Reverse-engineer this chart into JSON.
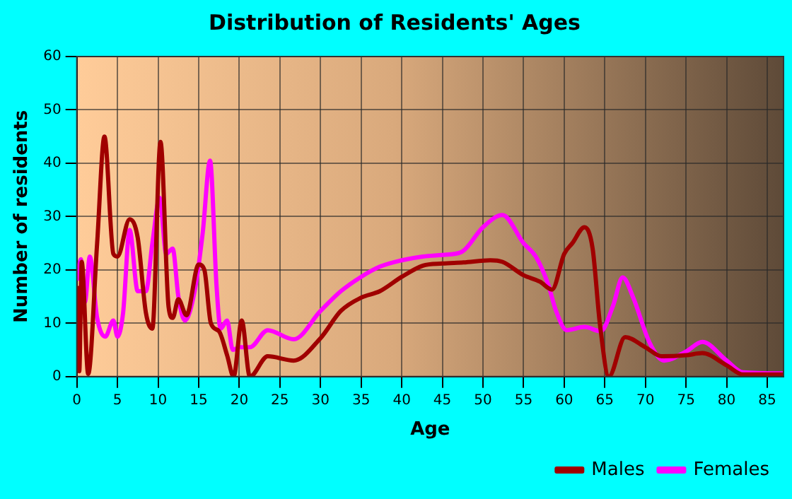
{
  "chart_data": {
    "type": "line",
    "title": "Distribution of Residents' Ages",
    "xlabel": "Age",
    "ylabel": "Number of residents",
    "xlim": [
      0,
      87
    ],
    "xticks": [
      0,
      5,
      10,
      15,
      20,
      25,
      30,
      35,
      40,
      45,
      50,
      55,
      60,
      65,
      70,
      75,
      80,
      85
    ],
    "ylim": [
      0,
      60
    ],
    "yticks": [
      0,
      10,
      20,
      30,
      40,
      50,
      60
    ],
    "grid": true,
    "legend": "bottom right",
    "marker": "none",
    "line_style": "solid",
    "series": [
      {
        "name": "Males",
        "color": "#a00000",
        "x": [
          0,
          0.3,
          0.6,
          1.4,
          2.5,
          3.4,
          4.5,
          5,
          6.5,
          7.5,
          8.5,
          9.3,
          10.3,
          11.3,
          11.8,
          12.5,
          13.5,
          15,
          15.7,
          16.5,
          17.5,
          18.5,
          19.3,
          20.3,
          21.3,
          23.5,
          26.7,
          30,
          32.5,
          35,
          37.3,
          40,
          42.6,
          45,
          47.6,
          50.9,
          52.4,
          55,
          57,
          58.5,
          60,
          61,
          62.5,
          63.5,
          64.4,
          65.5,
          67.5,
          70,
          72,
          75,
          77,
          80,
          82,
          87
        ],
        "values": [
          17,
          1,
          21.5,
          0.5,
          25,
          45,
          23,
          22.5,
          29.5,
          26,
          12,
          9,
          44,
          13,
          11,
          14.5,
          11.5,
          21,
          20,
          10,
          8.5,
          4,
          0,
          10.5,
          0,
          3.8,
          3,
          7.2,
          12.3,
          14.8,
          16,
          18.7,
          20.8,
          21.2,
          21.4,
          21.8,
          21.5,
          19,
          17.8,
          16.3,
          23,
          25,
          28,
          24,
          9.8,
          0,
          7.4,
          5.5,
          3.8,
          4,
          4.4,
          2.1,
          0.4,
          0.4
        ]
      },
      {
        "name": "Females",
        "color": "#ff00ff",
        "x": [
          0,
          0.5,
          1,
          1.6,
          2.5,
          3.5,
          4.5,
          5,
          5.7,
          6.5,
          7.5,
          8.5,
          9.3,
          10.2,
          11,
          11.8,
          12.5,
          13.3,
          14.5,
          15.5,
          16.4,
          17.2,
          17.7,
          18.5,
          19.2,
          20,
          21.3,
          23.5,
          26.7,
          30,
          32.5,
          35,
          37.3,
          40,
          42.6,
          45,
          47.4,
          50,
          52.4,
          55,
          56.5,
          58,
          59,
          60.3,
          62.5,
          64.5,
          66,
          67.2,
          68.5,
          70.5,
          72.3,
          75,
          77,
          80,
          82,
          87
        ],
        "values": [
          18,
          22,
          14,
          22.5,
          11,
          7.5,
          10.5,
          7.5,
          12,
          27.5,
          16,
          16,
          25,
          33.5,
          23,
          24,
          15,
          10.5,
          16,
          27,
          40.5,
          17,
          9,
          10.5,
          5,
          5.5,
          5.5,
          8.7,
          7,
          12.3,
          16,
          18.7,
          20.6,
          21.8,
          22.5,
          22.8,
          23.4,
          28,
          30.3,
          25,
          22.5,
          17.4,
          12.3,
          8.7,
          9.3,
          8.5,
          13.2,
          18.6,
          14.8,
          6.4,
          3,
          4.7,
          6.5,
          3,
          0.8,
          0.6
        ]
      }
    ]
  }
}
